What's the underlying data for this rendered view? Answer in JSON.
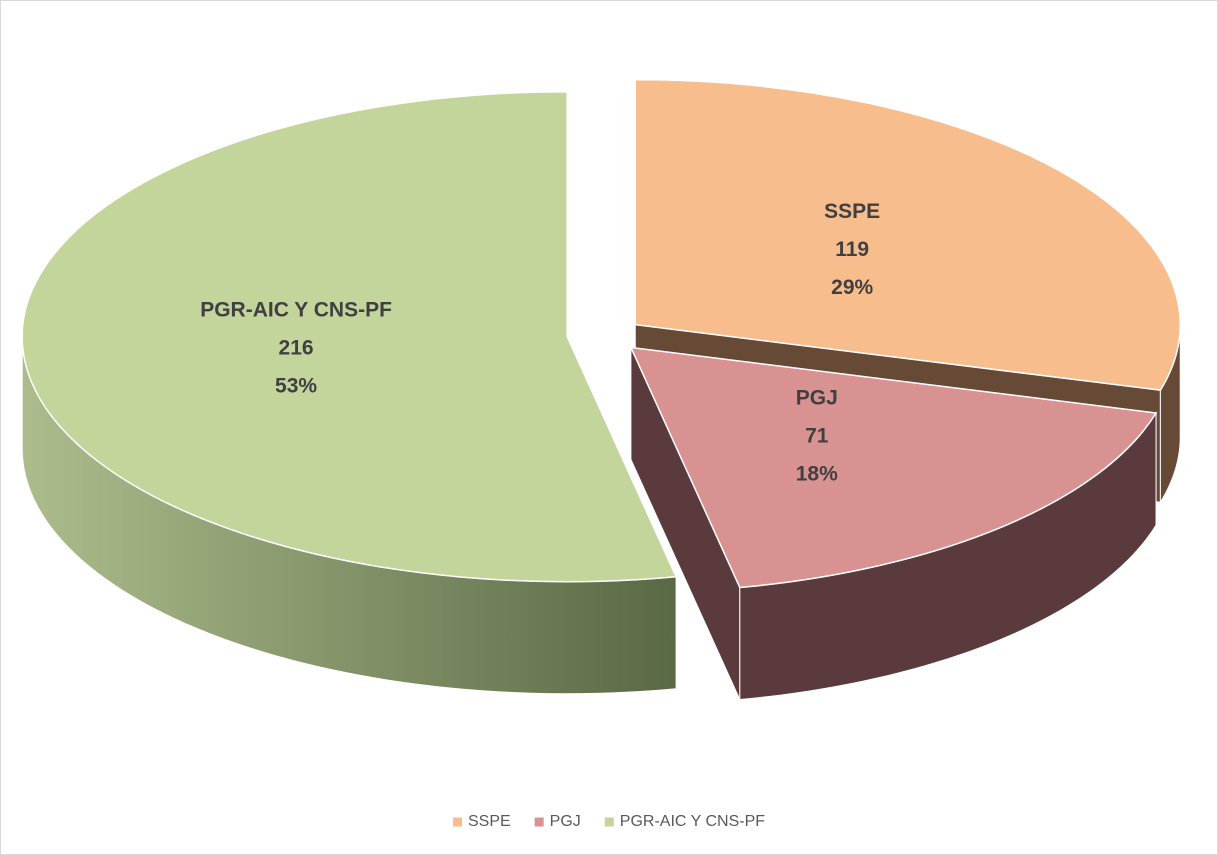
{
  "chart_data": {
    "type": "pie3d",
    "categories": [
      "SSPE",
      "PGJ",
      "PGR-AIC Y CNS-PF"
    ],
    "values": [
      119,
      71,
      216
    ],
    "percent_labels": [
      "29%",
      "18%",
      "53%"
    ],
    "colors": [
      "#f8bd8c",
      "#d99292",
      "#c3d59b"
    ],
    "legend": "bottom"
  }
}
